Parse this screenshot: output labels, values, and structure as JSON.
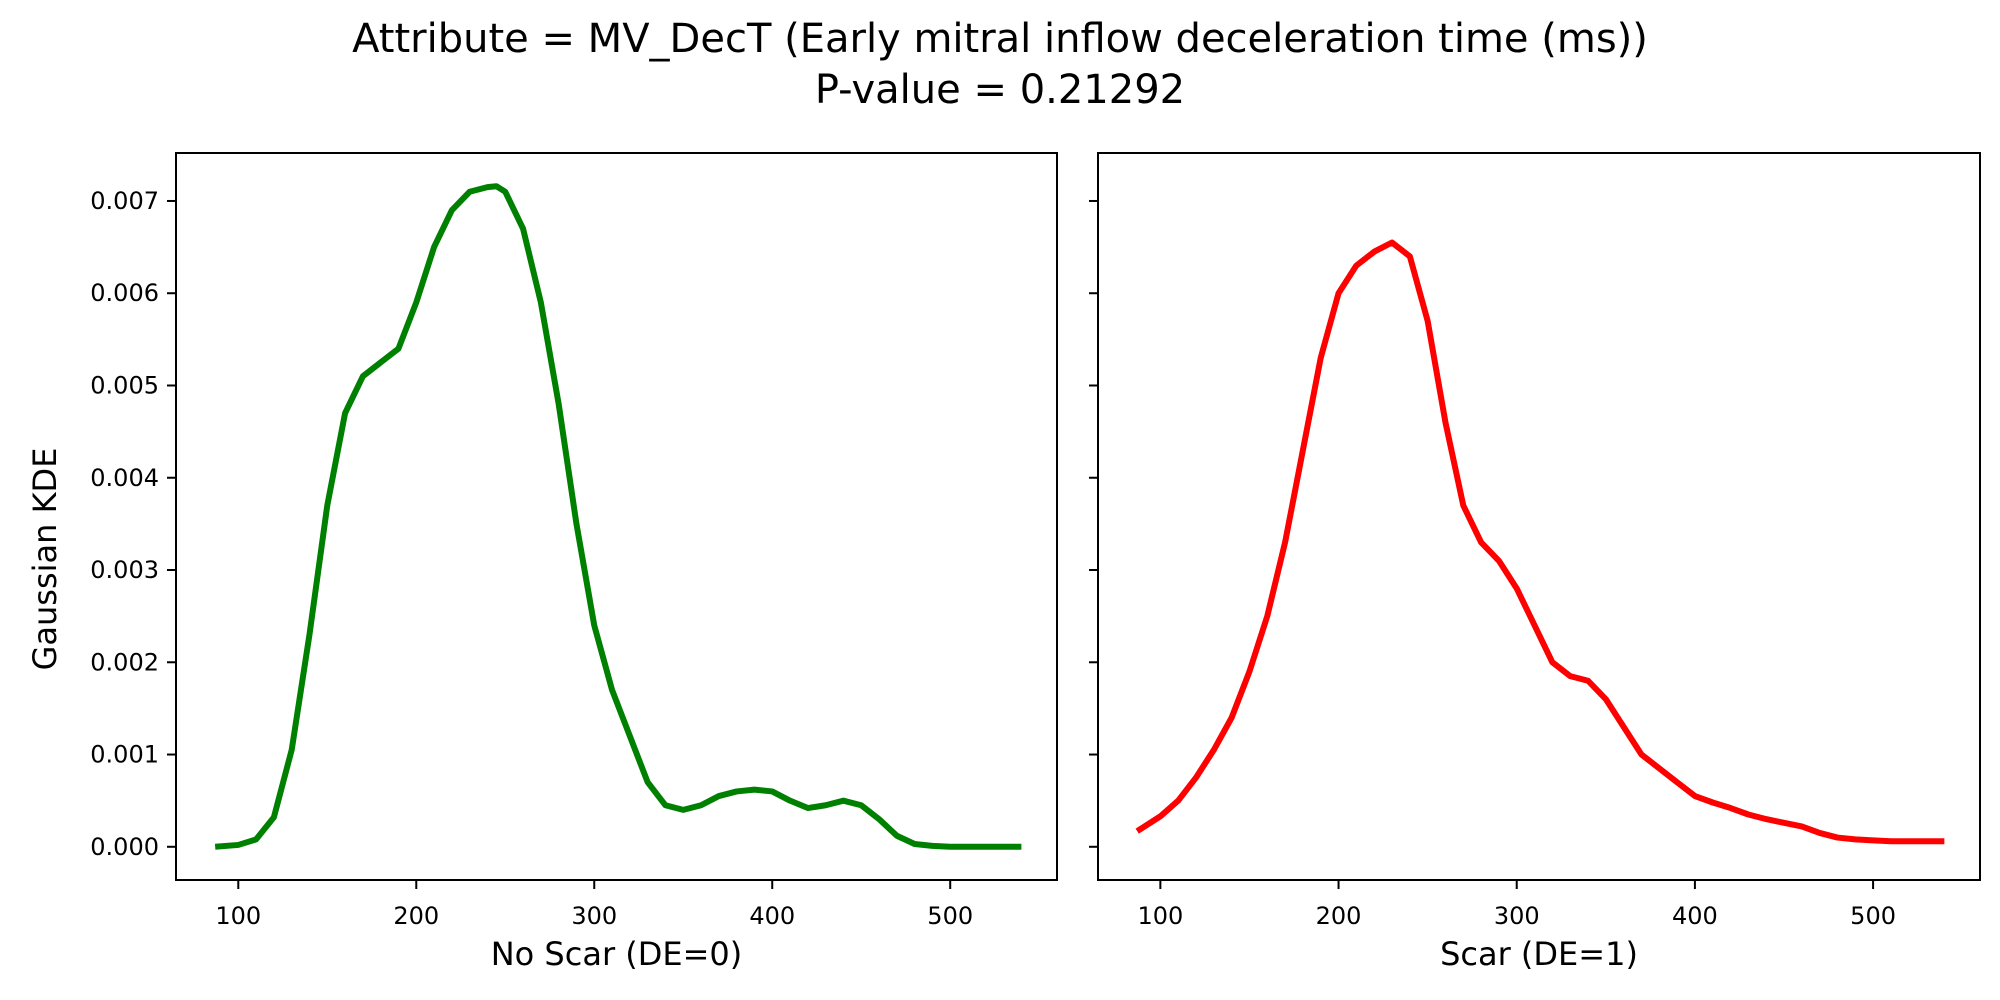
{
  "figure": {
    "title_line1": "Attribute = MV_DecT (Early mitral inflow deceleration time (ms))",
    "title_line2": "P-value = 0.21292",
    "ylabel": "Gaussian KDE"
  },
  "chart_data": [
    {
      "type": "line",
      "xlabel": "No Scar (DE=0)",
      "ylabel": "Gaussian KDE",
      "color": "#008000",
      "xlim": [
        65,
        560
      ],
      "ylim": [
        -0.00036,
        0.00752
      ],
      "xticks": [
        "100",
        "200",
        "300",
        "400",
        "500"
      ],
      "yticks": [
        "0.000",
        "0.001",
        "0.002",
        "0.003",
        "0.004",
        "0.005",
        "0.006",
        "0.007"
      ],
      "x": [
        87,
        100,
        110,
        120,
        130,
        140,
        150,
        160,
        170,
        180,
        190,
        200,
        210,
        220,
        230,
        240,
        245,
        250,
        260,
        270,
        280,
        290,
        300,
        310,
        320,
        330,
        340,
        350,
        360,
        370,
        380,
        390,
        400,
        410,
        420,
        430,
        440,
        450,
        460,
        470,
        480,
        490,
        500,
        520,
        540
      ],
      "y": [
        0.0,
        2e-05,
        8e-05,
        0.00032,
        0.00105,
        0.0023,
        0.0037,
        0.0047,
        0.0051,
        0.00525,
        0.0054,
        0.0059,
        0.0065,
        0.0069,
        0.0071,
        0.00715,
        0.00716,
        0.0071,
        0.0067,
        0.0059,
        0.0048,
        0.0035,
        0.0024,
        0.0017,
        0.0012,
        0.0007,
        0.00045,
        0.0004,
        0.00045,
        0.00055,
        0.0006,
        0.00062,
        0.0006,
        0.0005,
        0.00042,
        0.00045,
        0.0005,
        0.00045,
        0.0003,
        0.00012,
        3e-05,
        1e-05,
        0.0,
        0.0,
        0.0
      ]
    },
    {
      "type": "line",
      "xlabel": "Scar (DE=1)",
      "color": "#ff0000",
      "xlim": [
        65,
        560
      ],
      "ylim": [
        -0.00036,
        0.00752
      ],
      "xticks": [
        "100",
        "200",
        "300",
        "400",
        "500"
      ],
      "x": [
        87,
        100,
        110,
        120,
        130,
        140,
        150,
        160,
        170,
        180,
        190,
        200,
        210,
        220,
        230,
        240,
        250,
        260,
        270,
        280,
        290,
        300,
        310,
        320,
        330,
        340,
        350,
        360,
        370,
        380,
        390,
        400,
        410,
        420,
        430,
        440,
        450,
        460,
        470,
        480,
        490,
        500,
        510,
        520,
        540
      ],
      "y": [
        0.00017,
        0.00033,
        0.0005,
        0.00075,
        0.00105,
        0.0014,
        0.0019,
        0.0025,
        0.0033,
        0.0043,
        0.0053,
        0.006,
        0.0063,
        0.00645,
        0.00655,
        0.0064,
        0.0057,
        0.0046,
        0.0037,
        0.0033,
        0.0031,
        0.0028,
        0.0024,
        0.002,
        0.00185,
        0.0018,
        0.0016,
        0.0013,
        0.001,
        0.00085,
        0.0007,
        0.00055,
        0.00048,
        0.00042,
        0.00035,
        0.0003,
        0.00026,
        0.00022,
        0.00015,
        0.0001,
        8e-05,
        7e-05,
        6e-05,
        6e-05,
        6e-05
      ]
    }
  ]
}
